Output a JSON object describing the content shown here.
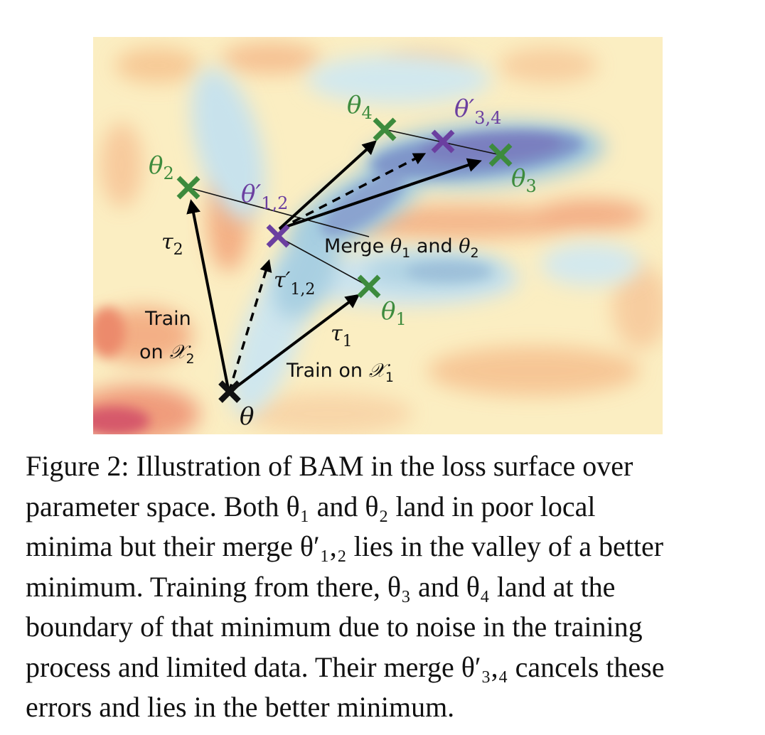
{
  "figure": {
    "points": {
      "theta": "θ",
      "theta1": "θ",
      "theta1_sub": "1",
      "theta2": "θ",
      "theta2_sub": "2",
      "theta3": "θ",
      "theta3_sub": "3",
      "theta4": "θ",
      "theta4_sub": "4",
      "merge12": "θ′",
      "merge12_sub": "1,2",
      "merge34": "θ′",
      "merge34_sub": "3,4"
    },
    "vectors": {
      "tau1": "τ",
      "tau1_sub": "1",
      "tau2": "τ",
      "tau2_sub": "2",
      "tau12": "τ′",
      "tau12_sub": "1,2"
    },
    "annotations": {
      "merge_text": "Merge ",
      "merge_theta1": "θ",
      "merge_sub1": "1",
      "merge_and": " and ",
      "merge_theta2": "θ",
      "merge_sub2": "2",
      "train2_line1": "Train",
      "train2_line2": "on ",
      "train2_X": "𝒳",
      "train2_sub": "2",
      "train1_text": "Train on ",
      "train1_X": "𝒳",
      "train1_sub": "1"
    },
    "colors": {
      "green_marker": "#3d8b3d",
      "purple_marker": "#6b3fa0",
      "black_marker": "#111111"
    }
  },
  "caption": {
    "lines": [
      "Figure 2: Illustration of BAM in the loss surface over",
      "parameter space.  Both θ₁ and θ₂ land in poor local",
      "minima but their merge θ′₁,₂ lies in the valley of a better",
      "minimum. Training from there, θ₃ and θ₄ land at the",
      "boundary of that minimum due to noise in the training",
      "process and limited data. Their merge θ′₃,₄ cancels these",
      "errors and lies in the better minimum."
    ]
  }
}
